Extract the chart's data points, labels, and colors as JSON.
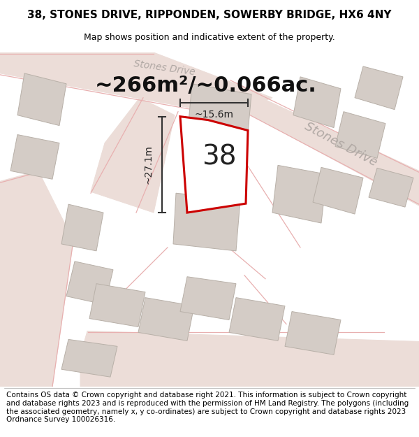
{
  "title_line1": "38, STONES DRIVE, RIPPONDEN, SOWERBY BRIDGE, HX6 4NY",
  "title_line2": "Map shows position and indicative extent of the property.",
  "area_text": "~266m²/~0.066ac.",
  "number_label": "38",
  "width_label": "~15.6m",
  "height_label": "~27.1m",
  "road_label1": "Stones Drive",
  "road_label2": "Stones Drive",
  "footer_text": "Contains OS data © Crown copyright and database right 2021. This information is subject to Crown copyright and database rights 2023 and is reproduced with the permission of HM Land Registry. The polygons (including the associated geometry, namely x, y co-ordinates) are subject to Crown copyright and database rights 2023 Ordnance Survey 100026316.",
  "bg_color": "#ffffff",
  "map_bg": "#f9f6f3",
  "road_color": "#ecddd8",
  "building_color": "#d4ccc6",
  "plot_outline_color": "#cc0000",
  "dim_line_color": "#333333",
  "road_text_color": "#b0a8a4",
  "title_fontsize": 11,
  "subtitle_fontsize": 9,
  "area_fontsize": 22,
  "number_fontsize": 28,
  "dim_fontsize": 10,
  "road_fontsize": 13,
  "footer_fontsize": 7.5
}
